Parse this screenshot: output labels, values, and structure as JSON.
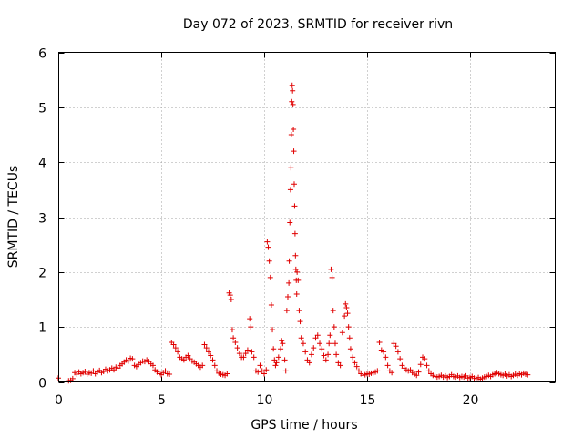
{
  "chart_data": {
    "type": "scatter",
    "title": "Day 072 of 2023, SRMTID for receiver rivn",
    "xlabel": "GPS time / hours",
    "ylabel": "SRMTID / TECUs",
    "xlim": [
      0,
      24.5
    ],
    "ylim": [
      0,
      6
    ],
    "xticks": [
      0,
      5,
      10,
      15,
      20
    ],
    "yticks": [
      0,
      1,
      2,
      3,
      4,
      5,
      6
    ],
    "xtick_labels": [
      "0",
      "5",
      "10",
      "15",
      "20"
    ],
    "ytick_labels": [
      "0",
      "1",
      "2",
      "3",
      "4",
      "5",
      "6"
    ],
    "grid": true,
    "marker": "+",
    "color": "#e00000",
    "points": [
      [
        0.0,
        0.07
      ],
      [
        0.5,
        0.02
      ],
      [
        0.6,
        0.03
      ],
      [
        0.7,
        0.06
      ],
      [
        0.8,
        0.17
      ],
      [
        0.9,
        0.14
      ],
      [
        1.0,
        0.18
      ],
      [
        1.1,
        0.15
      ],
      [
        1.2,
        0.17
      ],
      [
        1.3,
        0.19
      ],
      [
        1.4,
        0.14
      ],
      [
        1.5,
        0.17
      ],
      [
        1.6,
        0.16
      ],
      [
        1.7,
        0.2
      ],
      [
        1.8,
        0.15
      ],
      [
        1.9,
        0.18
      ],
      [
        2.0,
        0.21
      ],
      [
        2.1,
        0.17
      ],
      [
        2.2,
        0.19
      ],
      [
        2.3,
        0.23
      ],
      [
        2.4,
        0.2
      ],
      [
        2.5,
        0.22
      ],
      [
        2.6,
        0.25
      ],
      [
        2.7,
        0.22
      ],
      [
        2.8,
        0.27
      ],
      [
        2.9,
        0.25
      ],
      [
        3.0,
        0.3
      ],
      [
        3.1,
        0.33
      ],
      [
        3.2,
        0.36
      ],
      [
        3.3,
        0.4
      ],
      [
        3.4,
        0.38
      ],
      [
        3.5,
        0.43
      ],
      [
        3.6,
        0.42
      ],
      [
        3.7,
        0.3
      ],
      [
        3.8,
        0.28
      ],
      [
        3.9,
        0.32
      ],
      [
        4.0,
        0.35
      ],
      [
        4.1,
        0.38
      ],
      [
        4.2,
        0.37
      ],
      [
        4.3,
        0.4
      ],
      [
        4.4,
        0.37
      ],
      [
        4.5,
        0.33
      ],
      [
        4.6,
        0.3
      ],
      [
        4.7,
        0.22
      ],
      [
        4.8,
        0.18
      ],
      [
        4.9,
        0.15
      ],
      [
        5.0,
        0.13
      ],
      [
        5.1,
        0.17
      ],
      [
        5.2,
        0.2
      ],
      [
        5.3,
        0.15
      ],
      [
        5.4,
        0.14
      ],
      [
        5.5,
        0.72
      ],
      [
        5.6,
        0.68
      ],
      [
        5.7,
        0.62
      ],
      [
        5.8,
        0.55
      ],
      [
        5.9,
        0.45
      ],
      [
        6.0,
        0.42
      ],
      [
        6.1,
        0.4
      ],
      [
        6.2,
        0.45
      ],
      [
        6.3,
        0.48
      ],
      [
        6.4,
        0.42
      ],
      [
        6.5,
        0.38
      ],
      [
        6.6,
        0.36
      ],
      [
        6.7,
        0.33
      ],
      [
        6.8,
        0.3
      ],
      [
        6.9,
        0.27
      ],
      [
        7.0,
        0.3
      ],
      [
        7.1,
        0.68
      ],
      [
        7.2,
        0.62
      ],
      [
        7.3,
        0.55
      ],
      [
        7.4,
        0.48
      ],
      [
        7.5,
        0.4
      ],
      [
        7.6,
        0.3
      ],
      [
        7.7,
        0.2
      ],
      [
        7.8,
        0.16
      ],
      [
        7.9,
        0.14
      ],
      [
        8.0,
        0.13
      ],
      [
        8.1,
        0.12
      ],
      [
        8.2,
        0.15
      ],
      [
        8.3,
        1.62
      ],
      [
        8.35,
        1.58
      ],
      [
        8.4,
        1.5
      ],
      [
        8.45,
        0.95
      ],
      [
        8.5,
        0.8
      ],
      [
        8.6,
        0.72
      ],
      [
        8.7,
        0.62
      ],
      [
        8.8,
        0.52
      ],
      [
        8.9,
        0.45
      ],
      [
        9.0,
        0.45
      ],
      [
        9.1,
        0.52
      ],
      [
        9.2,
        0.58
      ],
      [
        9.3,
        1.15
      ],
      [
        9.35,
        1.0
      ],
      [
        9.4,
        0.55
      ],
      [
        9.5,
        0.45
      ],
      [
        9.6,
        0.2
      ],
      [
        9.7,
        0.18
      ],
      [
        9.8,
        0.3
      ],
      [
        9.9,
        0.2
      ],
      [
        10.0,
        0.15
      ],
      [
        10.1,
        0.22
      ],
      [
        10.15,
        2.55
      ],
      [
        10.2,
        2.45
      ],
      [
        10.25,
        2.2
      ],
      [
        10.3,
        1.9
      ],
      [
        10.35,
        1.4
      ],
      [
        10.4,
        0.95
      ],
      [
        10.45,
        0.6
      ],
      [
        10.5,
        0.4
      ],
      [
        10.55,
        0.3
      ],
      [
        10.6,
        0.35
      ],
      [
        10.7,
        0.45
      ],
      [
        10.8,
        0.6
      ],
      [
        10.85,
        0.75
      ],
      [
        10.9,
        0.7
      ],
      [
        11.0,
        0.4
      ],
      [
        11.05,
        0.2
      ],
      [
        11.1,
        1.3
      ],
      [
        11.15,
        1.55
      ],
      [
        11.2,
        1.8
      ],
      [
        11.22,
        2.2
      ],
      [
        11.25,
        2.9
      ],
      [
        11.28,
        3.5
      ],
      [
        11.3,
        3.9
      ],
      [
        11.32,
        4.5
      ],
      [
        11.34,
        5.1
      ],
      [
        11.36,
        5.4
      ],
      [
        11.38,
        5.3
      ],
      [
        11.4,
        5.05
      ],
      [
        11.42,
        4.6
      ],
      [
        11.44,
        4.2
      ],
      [
        11.46,
        3.6
      ],
      [
        11.48,
        3.2
      ],
      [
        11.5,
        2.7
      ],
      [
        11.52,
        2.3
      ],
      [
        11.54,
        2.05
      ],
      [
        11.56,
        1.85
      ],
      [
        11.58,
        1.6
      ],
      [
        11.6,
        2.0
      ],
      [
        11.65,
        1.85
      ],
      [
        11.7,
        1.3
      ],
      [
        11.75,
        1.1
      ],
      [
        11.8,
        0.8
      ],
      [
        11.9,
        0.7
      ],
      [
        12.0,
        0.55
      ],
      [
        12.1,
        0.4
      ],
      [
        12.2,
        0.35
      ],
      [
        12.3,
        0.5
      ],
      [
        12.4,
        0.62
      ],
      [
        12.5,
        0.8
      ],
      [
        12.6,
        0.85
      ],
      [
        12.7,
        0.7
      ],
      [
        12.8,
        0.6
      ],
      [
        12.9,
        0.48
      ],
      [
        13.0,
        0.4
      ],
      [
        13.1,
        0.5
      ],
      [
        13.15,
        0.7
      ],
      [
        13.2,
        0.85
      ],
      [
        13.25,
        2.05
      ],
      [
        13.3,
        1.9
      ],
      [
        13.35,
        1.3
      ],
      [
        13.4,
        1.0
      ],
      [
        13.45,
        0.7
      ],
      [
        13.5,
        0.5
      ],
      [
        13.6,
        0.35
      ],
      [
        13.7,
        0.3
      ],
      [
        13.8,
        0.9
      ],
      [
        13.9,
        1.2
      ],
      [
        13.95,
        1.42
      ],
      [
        14.0,
        1.35
      ],
      [
        14.05,
        1.25
      ],
      [
        14.1,
        1.0
      ],
      [
        14.15,
        0.8
      ],
      [
        14.2,
        0.6
      ],
      [
        14.3,
        0.45
      ],
      [
        14.4,
        0.35
      ],
      [
        14.5,
        0.28
      ],
      [
        14.6,
        0.2
      ],
      [
        14.7,
        0.15
      ],
      [
        14.8,
        0.12
      ],
      [
        14.9,
        0.13
      ],
      [
        15.0,
        0.15
      ],
      [
        15.1,
        0.14
      ],
      [
        15.2,
        0.16
      ],
      [
        15.3,
        0.17
      ],
      [
        15.4,
        0.18
      ],
      [
        15.5,
        0.2
      ],
      [
        15.6,
        0.72
      ],
      [
        15.7,
        0.58
      ],
      [
        15.8,
        0.55
      ],
      [
        15.9,
        0.45
      ],
      [
        16.0,
        0.3
      ],
      [
        16.1,
        0.2
      ],
      [
        16.2,
        0.17
      ],
      [
        16.3,
        0.7
      ],
      [
        16.4,
        0.65
      ],
      [
        16.5,
        0.55
      ],
      [
        16.6,
        0.42
      ],
      [
        16.7,
        0.3
      ],
      [
        16.8,
        0.25
      ],
      [
        16.9,
        0.22
      ],
      [
        17.0,
        0.2
      ],
      [
        17.1,
        0.22
      ],
      [
        17.2,
        0.17
      ],
      [
        17.3,
        0.14
      ],
      [
        17.4,
        0.12
      ],
      [
        17.5,
        0.18
      ],
      [
        17.6,
        0.32
      ],
      [
        17.7,
        0.45
      ],
      [
        17.8,
        0.42
      ],
      [
        17.9,
        0.3
      ],
      [
        18.0,
        0.2
      ],
      [
        18.1,
        0.15
      ],
      [
        18.2,
        0.12
      ],
      [
        18.3,
        0.1
      ],
      [
        18.4,
        0.09
      ],
      [
        18.5,
        0.1
      ],
      [
        18.6,
        0.12
      ],
      [
        18.7,
        0.09
      ],
      [
        18.8,
        0.11
      ],
      [
        18.9,
        0.08
      ],
      [
        19.0,
        0.1
      ],
      [
        19.1,
        0.13
      ],
      [
        19.2,
        0.1
      ],
      [
        19.3,
        0.09
      ],
      [
        19.4,
        0.11
      ],
      [
        19.5,
        0.08
      ],
      [
        19.6,
        0.1
      ],
      [
        19.7,
        0.09
      ],
      [
        19.8,
        0.11
      ],
      [
        19.9,
        0.07
      ],
      [
        20.0,
        0.08
      ],
      [
        20.1,
        0.1
      ],
      [
        20.2,
        0.07
      ],
      [
        20.3,
        0.06
      ],
      [
        20.4,
        0.08
      ],
      [
        20.5,
        0.05
      ],
      [
        20.6,
        0.07
      ],
      [
        20.7,
        0.09
      ],
      [
        20.8,
        0.1
      ],
      [
        20.9,
        0.12
      ],
      [
        21.0,
        0.1
      ],
      [
        21.1,
        0.13
      ],
      [
        21.2,
        0.15
      ],
      [
        21.3,
        0.17
      ],
      [
        21.4,
        0.15
      ],
      [
        21.5,
        0.13
      ],
      [
        21.6,
        0.12
      ],
      [
        21.7,
        0.14
      ],
      [
        21.8,
        0.11
      ],
      [
        21.9,
        0.13
      ],
      [
        22.0,
        0.1
      ],
      [
        22.1,
        0.12
      ],
      [
        22.2,
        0.14
      ],
      [
        22.3,
        0.12
      ],
      [
        22.4,
        0.15
      ],
      [
        22.5,
        0.13
      ],
      [
        22.6,
        0.16
      ],
      [
        22.7,
        0.14
      ],
      [
        22.8,
        0.13
      ]
    ]
  }
}
